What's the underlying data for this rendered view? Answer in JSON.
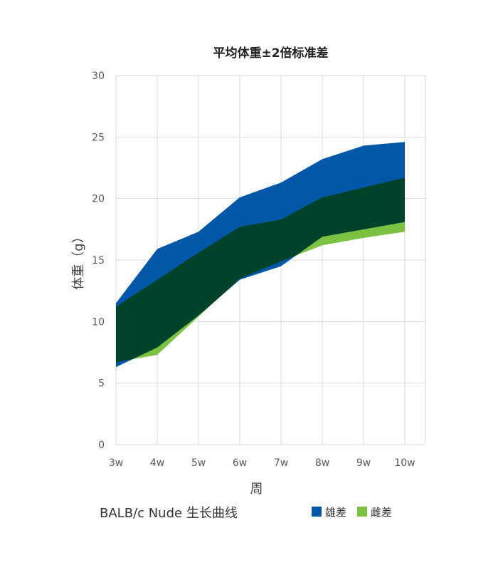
{
  "chart_data": {
    "type": "area",
    "title": "平均体重±2倍标准差",
    "xlabel": "周",
    "ylabel": "体重（g）",
    "categories": [
      "3w",
      "4w",
      "5w",
      "6w",
      "7w",
      "8w",
      "9w",
      "10w"
    ],
    "ylim": [
      0,
      30
    ],
    "yticks": [
      0,
      5,
      10,
      15,
      20,
      25,
      30
    ],
    "grid": true,
    "caption": "BALB/c Nude 生长曲线",
    "legend_position": "bottom-right",
    "series": [
      {
        "name": "雄差",
        "color": "#0057A8",
        "lower": [
          6.3,
          7.9,
          10.5,
          13.4,
          14.5,
          16.9,
          17.5,
          18.1
        ],
        "upper": [
          11.5,
          15.9,
          17.3,
          20.1,
          21.3,
          23.2,
          24.3,
          24.6
        ]
      },
      {
        "name": "雌差",
        "color": "#7DC142",
        "lower": [
          6.7,
          7.3,
          10.4,
          13.5,
          14.9,
          16.2,
          16.8,
          17.3
        ],
        "upper": [
          11.2,
          13.4,
          15.6,
          17.7,
          18.3,
          20.1,
          20.9,
          21.7
        ]
      }
    ],
    "overlap_color": "#00432A"
  }
}
